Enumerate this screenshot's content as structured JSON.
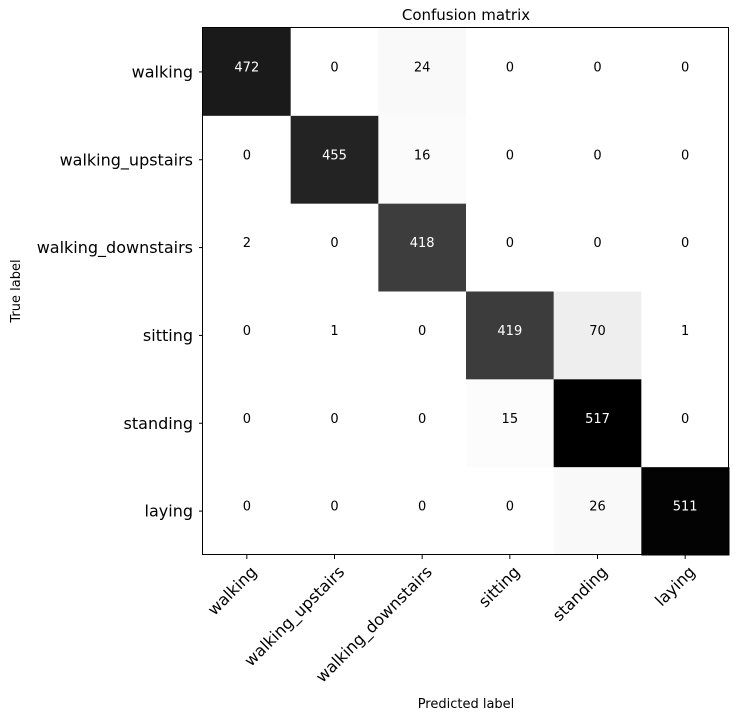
{
  "chart_data": {
    "type": "heatmap",
    "title": "Confusion matrix",
    "xlabel": "Predicted label",
    "ylabel": "True label",
    "row_labels": [
      "walking",
      "walking_upstairs",
      "walking_downstairs",
      "sitting",
      "standing",
      "laying"
    ],
    "col_labels": [
      "walking",
      "walking_upstairs",
      "walking_downstairs",
      "sitting",
      "standing",
      "laying"
    ],
    "values": [
      [
        472,
        0,
        24,
        0,
        0,
        0
      ],
      [
        0,
        455,
        16,
        0,
        0,
        0
      ],
      [
        2,
        0,
        418,
        0,
        0,
        0
      ],
      [
        0,
        1,
        0,
        419,
        70,
        1
      ],
      [
        0,
        0,
        0,
        15,
        517,
        0
      ],
      [
        0,
        0,
        0,
        0,
        26,
        511
      ]
    ],
    "colormap": "Greys",
    "vmin": 0,
    "vmax": 517,
    "colorbar": false,
    "grid": false,
    "x_tick_rotation": 45
  }
}
